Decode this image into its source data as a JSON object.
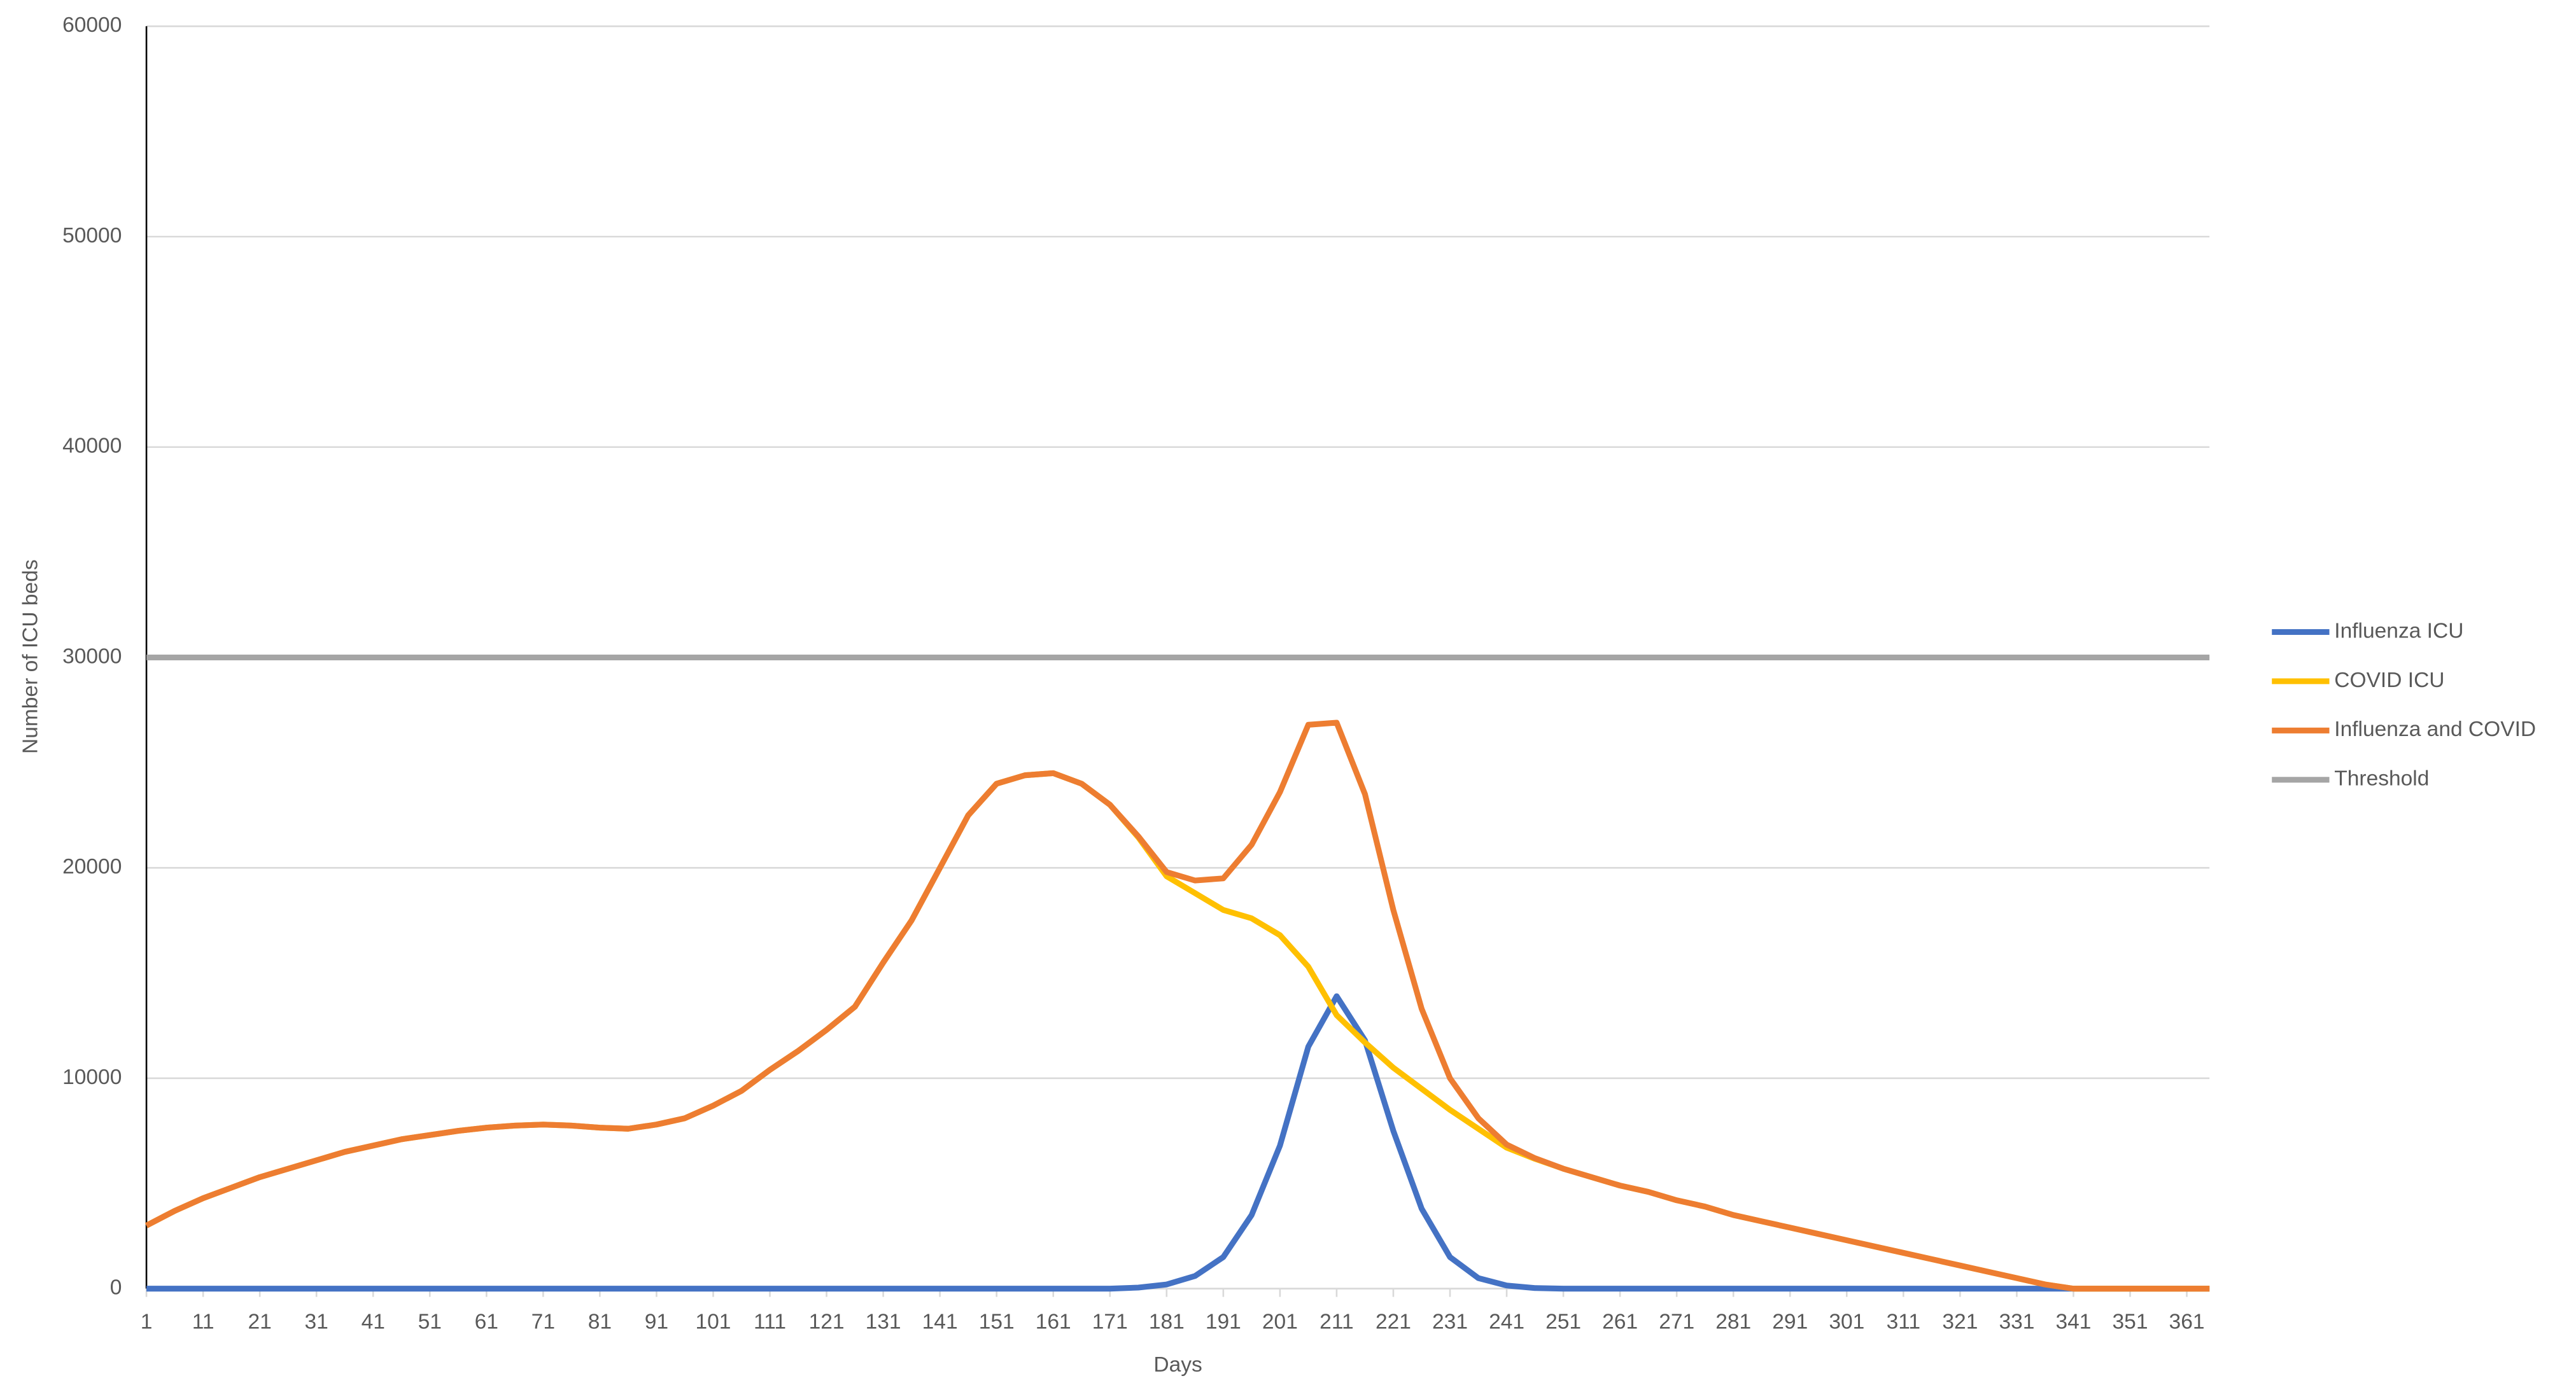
{
  "chart_data": {
    "type": "line",
    "x_label": "Days",
    "y_label": "Number of ICU beds",
    "x": [
      1,
      6,
      11,
      16,
      21,
      26,
      31,
      36,
      41,
      46,
      51,
      56,
      61,
      66,
      71,
      76,
      81,
      86,
      91,
      96,
      101,
      106,
      111,
      116,
      121,
      126,
      131,
      136,
      141,
      146,
      151,
      156,
      161,
      166,
      171,
      176,
      181,
      186,
      191,
      196,
      201,
      206,
      211,
      216,
      221,
      226,
      231,
      236,
      241,
      246,
      251,
      256,
      261,
      266,
      271,
      276,
      281,
      286,
      291,
      296,
      301,
      306,
      311,
      316,
      321,
      326,
      331,
      336,
      341,
      346,
      351,
      356,
      361,
      365
    ],
    "xlim": [
      1,
      365
    ],
    "xticks": [
      1,
      11,
      21,
      31,
      41,
      51,
      61,
      71,
      81,
      91,
      101,
      111,
      121,
      131,
      141,
      151,
      161,
      171,
      181,
      191,
      201,
      211,
      221,
      231,
      241,
      251,
      261,
      271,
      281,
      291,
      301,
      311,
      321,
      331,
      341,
      351,
      361
    ],
    "ylim": [
      0,
      60000
    ],
    "yticks": [
      0,
      10000,
      20000,
      30000,
      40000,
      50000,
      60000
    ],
    "grid": true,
    "legend_position": "right",
    "series": [
      {
        "name": "Influenza ICU",
        "color": "#4472c4",
        "values": [
          0,
          0,
          0,
          0,
          0,
          0,
          0,
          0,
          0,
          0,
          0,
          0,
          0,
          0,
          0,
          0,
          0,
          0,
          0,
          0,
          0,
          0,
          0,
          0,
          0,
          0,
          0,
          0,
          0,
          0,
          0,
          0,
          0,
          0,
          0,
          50,
          200,
          600,
          1500,
          3500,
          6800,
          11500,
          13900,
          11800,
          7500,
          3800,
          1500,
          500,
          150,
          30,
          0,
          0,
          0,
          0,
          0,
          0,
          0,
          0,
          0,
          0,
          0,
          0,
          0,
          0,
          0,
          0,
          0,
          0,
          0,
          0,
          0,
          0,
          0,
          0
        ]
      },
      {
        "name": "COVID ICU",
        "color": "#ffc000",
        "values": [
          3000,
          3700,
          4300,
          4800,
          5300,
          5700,
          6100,
          6500,
          6800,
          7100,
          7300,
          7500,
          7650,
          7750,
          7800,
          7750,
          7650,
          7600,
          7800,
          8100,
          8700,
          9400,
          10400,
          11300,
          12300,
          13400,
          15500,
          17500,
          20000,
          22500,
          24000,
          24400,
          24500,
          24000,
          23000,
          21450,
          19600,
          18800,
          18000,
          17600,
          16800,
          15300,
          13000,
          11700,
          10500,
          9500,
          8500,
          7600,
          6700,
          6170,
          5700,
          5300,
          4900,
          4600,
          4200,
          3900,
          3500,
          3200,
          2900,
          2600,
          2300,
          2000,
          1700,
          1400,
          1100,
          800,
          500,
          200,
          0,
          0,
          0,
          0,
          0,
          0
        ]
      },
      {
        "name": "Influenza and COVID",
        "color": "#ed7d31",
        "values": [
          3000,
          3700,
          4300,
          4800,
          5300,
          5700,
          6100,
          6500,
          6800,
          7100,
          7300,
          7500,
          7650,
          7750,
          7800,
          7750,
          7650,
          7600,
          7800,
          8100,
          8700,
          9400,
          10400,
          11300,
          12300,
          13400,
          15500,
          17500,
          20000,
          22500,
          24000,
          24400,
          24500,
          24000,
          23000,
          21500,
          19800,
          19400,
          19500,
          21100,
          23600,
          26800,
          26900,
          23500,
          18000,
          13300,
          10000,
          8100,
          6850,
          6200,
          5700,
          5300,
          4900,
          4600,
          4200,
          3900,
          3500,
          3200,
          2900,
          2600,
          2300,
          2000,
          1700,
          1400,
          1100,
          800,
          500,
          200,
          0,
          0,
          0,
          0,
          0,
          0
        ]
      },
      {
        "name": "Threshold",
        "color": "#a5a5a5",
        "values": [
          30000,
          30000,
          30000,
          30000,
          30000,
          30000,
          30000,
          30000,
          30000,
          30000,
          30000,
          30000,
          30000,
          30000,
          30000,
          30000,
          30000,
          30000,
          30000,
          30000,
          30000,
          30000,
          30000,
          30000,
          30000,
          30000,
          30000,
          30000,
          30000,
          30000,
          30000,
          30000,
          30000,
          30000,
          30000,
          30000,
          30000,
          30000,
          30000,
          30000,
          30000,
          30000,
          30000,
          30000,
          30000,
          30000,
          30000,
          30000,
          30000,
          30000,
          30000,
          30000,
          30000,
          30000,
          30000,
          30000,
          30000,
          30000,
          30000,
          30000,
          30000,
          30000,
          30000,
          30000,
          30000,
          30000,
          30000,
          30000,
          30000,
          30000,
          30000,
          30000,
          30000,
          30000
        ]
      }
    ]
  }
}
